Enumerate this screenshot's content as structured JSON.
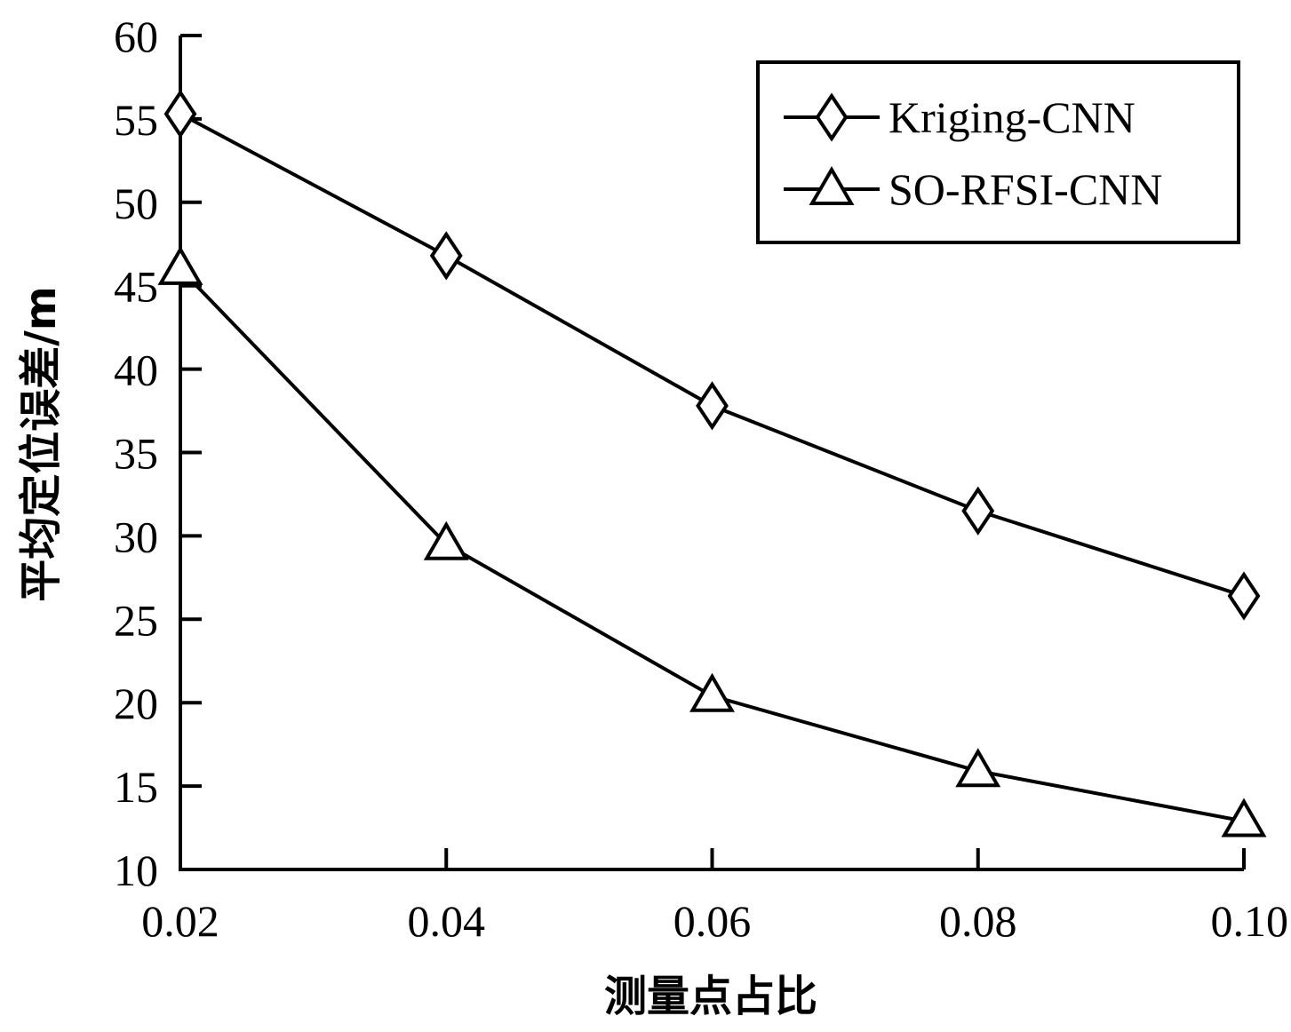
{
  "chart_data": {
    "type": "line",
    "title": "",
    "xlabel": "测量点占比",
    "ylabel": "平均定位误差/m",
    "x": [
      0.02,
      0.04,
      0.06,
      0.08,
      0.1
    ],
    "x_tick_labels": [
      "0.02",
      "0.04",
      "0.06",
      "0.08",
      "0.10"
    ],
    "y_ticks": [
      10,
      15,
      20,
      25,
      30,
      35,
      40,
      45,
      50,
      55,
      60
    ],
    "y_tick_labels": [
      "10",
      "15",
      "20",
      "25",
      "30",
      "35",
      "40",
      "45",
      "50",
      "55",
      "60"
    ],
    "xlim": [
      0.02,
      0.1
    ],
    "ylim": [
      10,
      60
    ],
    "grid": false,
    "legend_position": "top-right",
    "series": [
      {
        "name": "Kriging-CNN",
        "marker": "diamond",
        "values": [
          55.3,
          46.8,
          37.8,
          31.5,
          26.4
        ]
      },
      {
        "name": "SO-RFSI-CNN",
        "marker": "triangle",
        "values": [
          46.0,
          29.5,
          20.4,
          15.9,
          12.9
        ]
      }
    ]
  }
}
